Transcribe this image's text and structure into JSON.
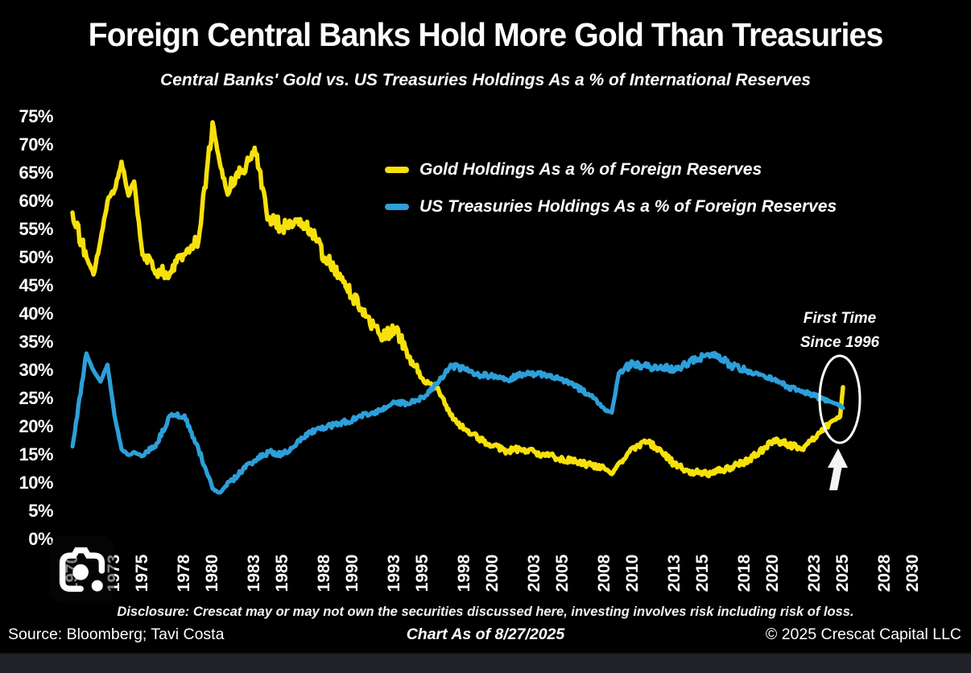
{
  "colors": {
    "background": "#000000",
    "text": "#FFFFFF",
    "gold_line": "#F7E10A",
    "treasuries_line": "#2D9FD9",
    "highlight_circle": "#FFFFFF",
    "viewer_bar": "#212227"
  },
  "footer": {
    "disclosure": "Disclosure: Crescat may or may not own the securities discussed here, investing involves risk including risk of loss.",
    "source": "Source: Bloomberg; Tavi Costa",
    "as_of": "Chart As of 8/27/2025",
    "copyright": "© 2025 Crescat Capital LLC"
  },
  "icons": {
    "lens_camera": "camera-lens-icon (screenshot search overlay, bottom-left)"
  },
  "chart_data": {
    "type": "line",
    "title": "Foreign Central Banks Hold More Gold Than Treasuries",
    "subtitle": "Central Banks' Gold vs. US Treasuries Holdings As a % of International Reserves",
    "xlabel": "",
    "ylabel": "% of International Reserves",
    "ylim": [
      0,
      75
    ],
    "ytick_step": 5,
    "ytick_labels": [
      "75%",
      "70%",
      "65%",
      "60%",
      "55%",
      "50%",
      "45%",
      "40%",
      "35%",
      "30%",
      "25%",
      "20%",
      "15%",
      "10%",
      "5%",
      "0%"
    ],
    "xtick_labels": [
      "1970",
      "1973",
      "1975",
      "1978",
      "1980",
      "1983",
      "1985",
      "1988",
      "1990",
      "1993",
      "1995",
      "1998",
      "2000",
      "2003",
      "2005",
      "2008",
      "2010",
      "2013",
      "2015",
      "2018",
      "2020",
      "2023",
      "2025",
      "2028",
      "2030"
    ],
    "xlim": [
      1970,
      2030
    ],
    "grid": false,
    "legend_position": "inside upper-center",
    "annotation": {
      "line1": "First Time",
      "line2": "Since 1996",
      "note": "White ellipse and upward arrow mark gold holdings crossing above US Treasuries holdings in 2025, ~27% vs ~23%"
    },
    "x": [
      1970,
      1971,
      1971.5,
      1972,
      1972.5,
      1973,
      1973.5,
      1974,
      1974.4,
      1975,
      1976,
      1977,
      1978,
      1979,
      1980,
      1980.5,
      1981,
      1982,
      1983,
      1984,
      1985,
      1986,
      1987,
      1988,
      1989,
      1990,
      1991,
      1992,
      1993,
      1994,
      1995,
      1996,
      1997,
      1998,
      1999,
      2000,
      2001,
      2002,
      2003,
      2004,
      2005,
      2006,
      2007,
      2008,
      2008.5,
      2009,
      2010,
      2011,
      2012,
      2013,
      2014,
      2015,
      2016,
      2017,
      2018,
      2019,
      2020,
      2021,
      2022,
      2023,
      2024,
      2024.8,
      2025
    ],
    "series": [
      {
        "name": "Gold Holdings As a % of Foreign Reserves",
        "color": "#F7E10A",
        "values": [
          58,
          50,
          47,
          53,
          60,
          62,
          67,
          61,
          63.5,
          50.5,
          47.5,
          47.5,
          50.5,
          53,
          74,
          67,
          62,
          65,
          69.5,
          57,
          55.5,
          56.5,
          55,
          50,
          47,
          43,
          39.5,
          36,
          37.5,
          32.5,
          28.5,
          27,
          22,
          19.5,
          18,
          16.5,
          15.7,
          16,
          15.5,
          14.8,
          14.3,
          13.8,
          13.2,
          12.5,
          11.6,
          13.5,
          16.3,
          17.3,
          15.8,
          13.2,
          12.2,
          11.6,
          12,
          12.8,
          13.8,
          15.3,
          17.5,
          17,
          16,
          18,
          20.5,
          21.8,
          27
        ]
      },
      {
        "name": "US Treasuries Holdings As a % of Foreign Reserves",
        "color": "#2D9FD9",
        "values": [
          16.5,
          33,
          30,
          28,
          31,
          22,
          16,
          15,
          15.5,
          14.8,
          17,
          22,
          22,
          16,
          9,
          8.3,
          9.5,
          12,
          14,
          15.5,
          15,
          17,
          19,
          19.8,
          20.6,
          21.2,
          22.3,
          22.8,
          24.3,
          24,
          25.2,
          27.5,
          31,
          30.2,
          29.2,
          29,
          28.3,
          29.3,
          29.4,
          29.2,
          28.4,
          27,
          25.5,
          23,
          22.5,
          29.5,
          31.3,
          30.6,
          30.8,
          30,
          31.3,
          32.5,
          32.8,
          30.8,
          30,
          29.2,
          28.3,
          27.2,
          26.2,
          25.4,
          24.6,
          23.8,
          23.3
        ]
      }
    ]
  }
}
